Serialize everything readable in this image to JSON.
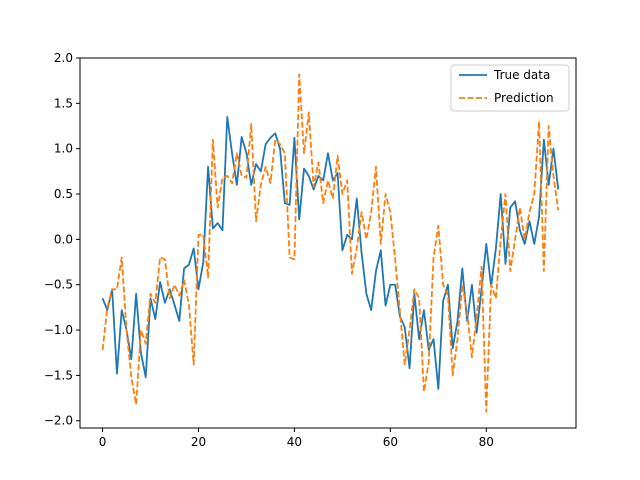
{
  "chart_data": {
    "type": "line",
    "title": "",
    "xlabel": "",
    "ylabel": "",
    "xlim": [
      -4.7,
      98.7
    ],
    "ylim": [
      -2.08,
      2.0
    ],
    "xticks": [
      0,
      20,
      40,
      60,
      80
    ],
    "yticks": [
      -2.0,
      -1.5,
      -1.0,
      -0.5,
      0.0,
      0.5,
      1.0,
      1.5,
      2.0
    ],
    "xtick_labels": [
      "0",
      "20",
      "40",
      "60",
      "80"
    ],
    "ytick_labels": [
      "−2.0",
      "−1.5",
      "−1.0",
      "−0.5",
      "0.0",
      "0.5",
      "1.0",
      "1.5",
      "2.0"
    ],
    "grid": false,
    "legend_position": "top-right",
    "series": [
      {
        "name": "True data",
        "color": "#1f77b4",
        "style": "solid",
        "values": [
          -0.65,
          -0.78,
          -0.55,
          -1.48,
          -0.78,
          -1.0,
          -1.32,
          -0.6,
          -1.25,
          -1.52,
          -0.65,
          -0.88,
          -0.47,
          -0.7,
          -0.55,
          -0.72,
          -0.9,
          -0.32,
          -0.28,
          -0.1,
          -0.55,
          -0.25,
          0.8,
          0.12,
          0.18,
          0.1,
          1.35,
          0.95,
          0.6,
          1.13,
          0.95,
          0.6,
          0.83,
          0.75,
          1.05,
          1.12,
          1.17,
          1.0,
          0.4,
          0.38,
          1.12,
          0.22,
          0.78,
          0.7,
          0.55,
          0.7,
          0.65,
          0.95,
          0.65,
          0.73,
          -0.12,
          0.05,
          0.0,
          0.45,
          -0.15,
          -0.6,
          -0.78,
          -0.35,
          -0.12,
          -0.73,
          -0.5,
          -0.5,
          -0.85,
          -0.97,
          -1.42,
          -0.6,
          -1.1,
          -0.78,
          -1.22,
          -1.1,
          -1.65,
          -0.68,
          -0.5,
          -1.2,
          -0.9,
          -0.32,
          -0.9,
          -0.5,
          -1.03,
          -0.55,
          -0.05,
          -0.52,
          -0.1,
          0.5,
          -0.27,
          0.35,
          0.42,
          0.1,
          -0.05,
          0.2,
          -0.05,
          0.25,
          1.1,
          0.6,
          1.0,
          0.55
        ]
      },
      {
        "name": "Prediction",
        "color": "#ff7f0e",
        "style": "dashed",
        "values": [
          -1.22,
          -0.75,
          -0.55,
          -0.55,
          -0.2,
          -1.0,
          -1.52,
          -1.82,
          -1.0,
          -1.15,
          -0.6,
          -0.7,
          -0.2,
          -0.22,
          -0.65,
          -0.5,
          -0.62,
          -0.45,
          -0.72,
          -1.38,
          0.05,
          0.05,
          -0.42,
          1.1,
          0.35,
          0.68,
          0.7,
          0.62,
          0.95,
          0.7,
          0.68,
          1.27,
          0.2,
          0.6,
          0.8,
          0.62,
          1.1,
          1.05,
          0.95,
          -0.2,
          -0.22,
          1.82,
          0.95,
          1.4,
          0.58,
          0.85,
          0.4,
          0.65,
          0.45,
          0.92,
          0.5,
          0.65,
          -0.38,
          -0.1,
          0.3,
          0.0,
          0.3,
          0.8,
          -0.05,
          0.5,
          0.3,
          -0.22,
          -0.8,
          -1.38,
          -1.0,
          -0.55,
          -0.65,
          -1.68,
          -1.35,
          -0.2,
          0.15,
          -0.5,
          -0.62,
          -1.5,
          -1.1,
          -0.5,
          -0.8,
          -1.3,
          -0.85,
          -0.3,
          -1.9,
          -0.5,
          -0.65,
          0.0,
          0.5,
          -0.35,
          0.0,
          0.35,
          0.0,
          0.3,
          0.5,
          1.3,
          -0.35,
          1.25,
          0.7,
          0.32
        ]
      }
    ]
  }
}
